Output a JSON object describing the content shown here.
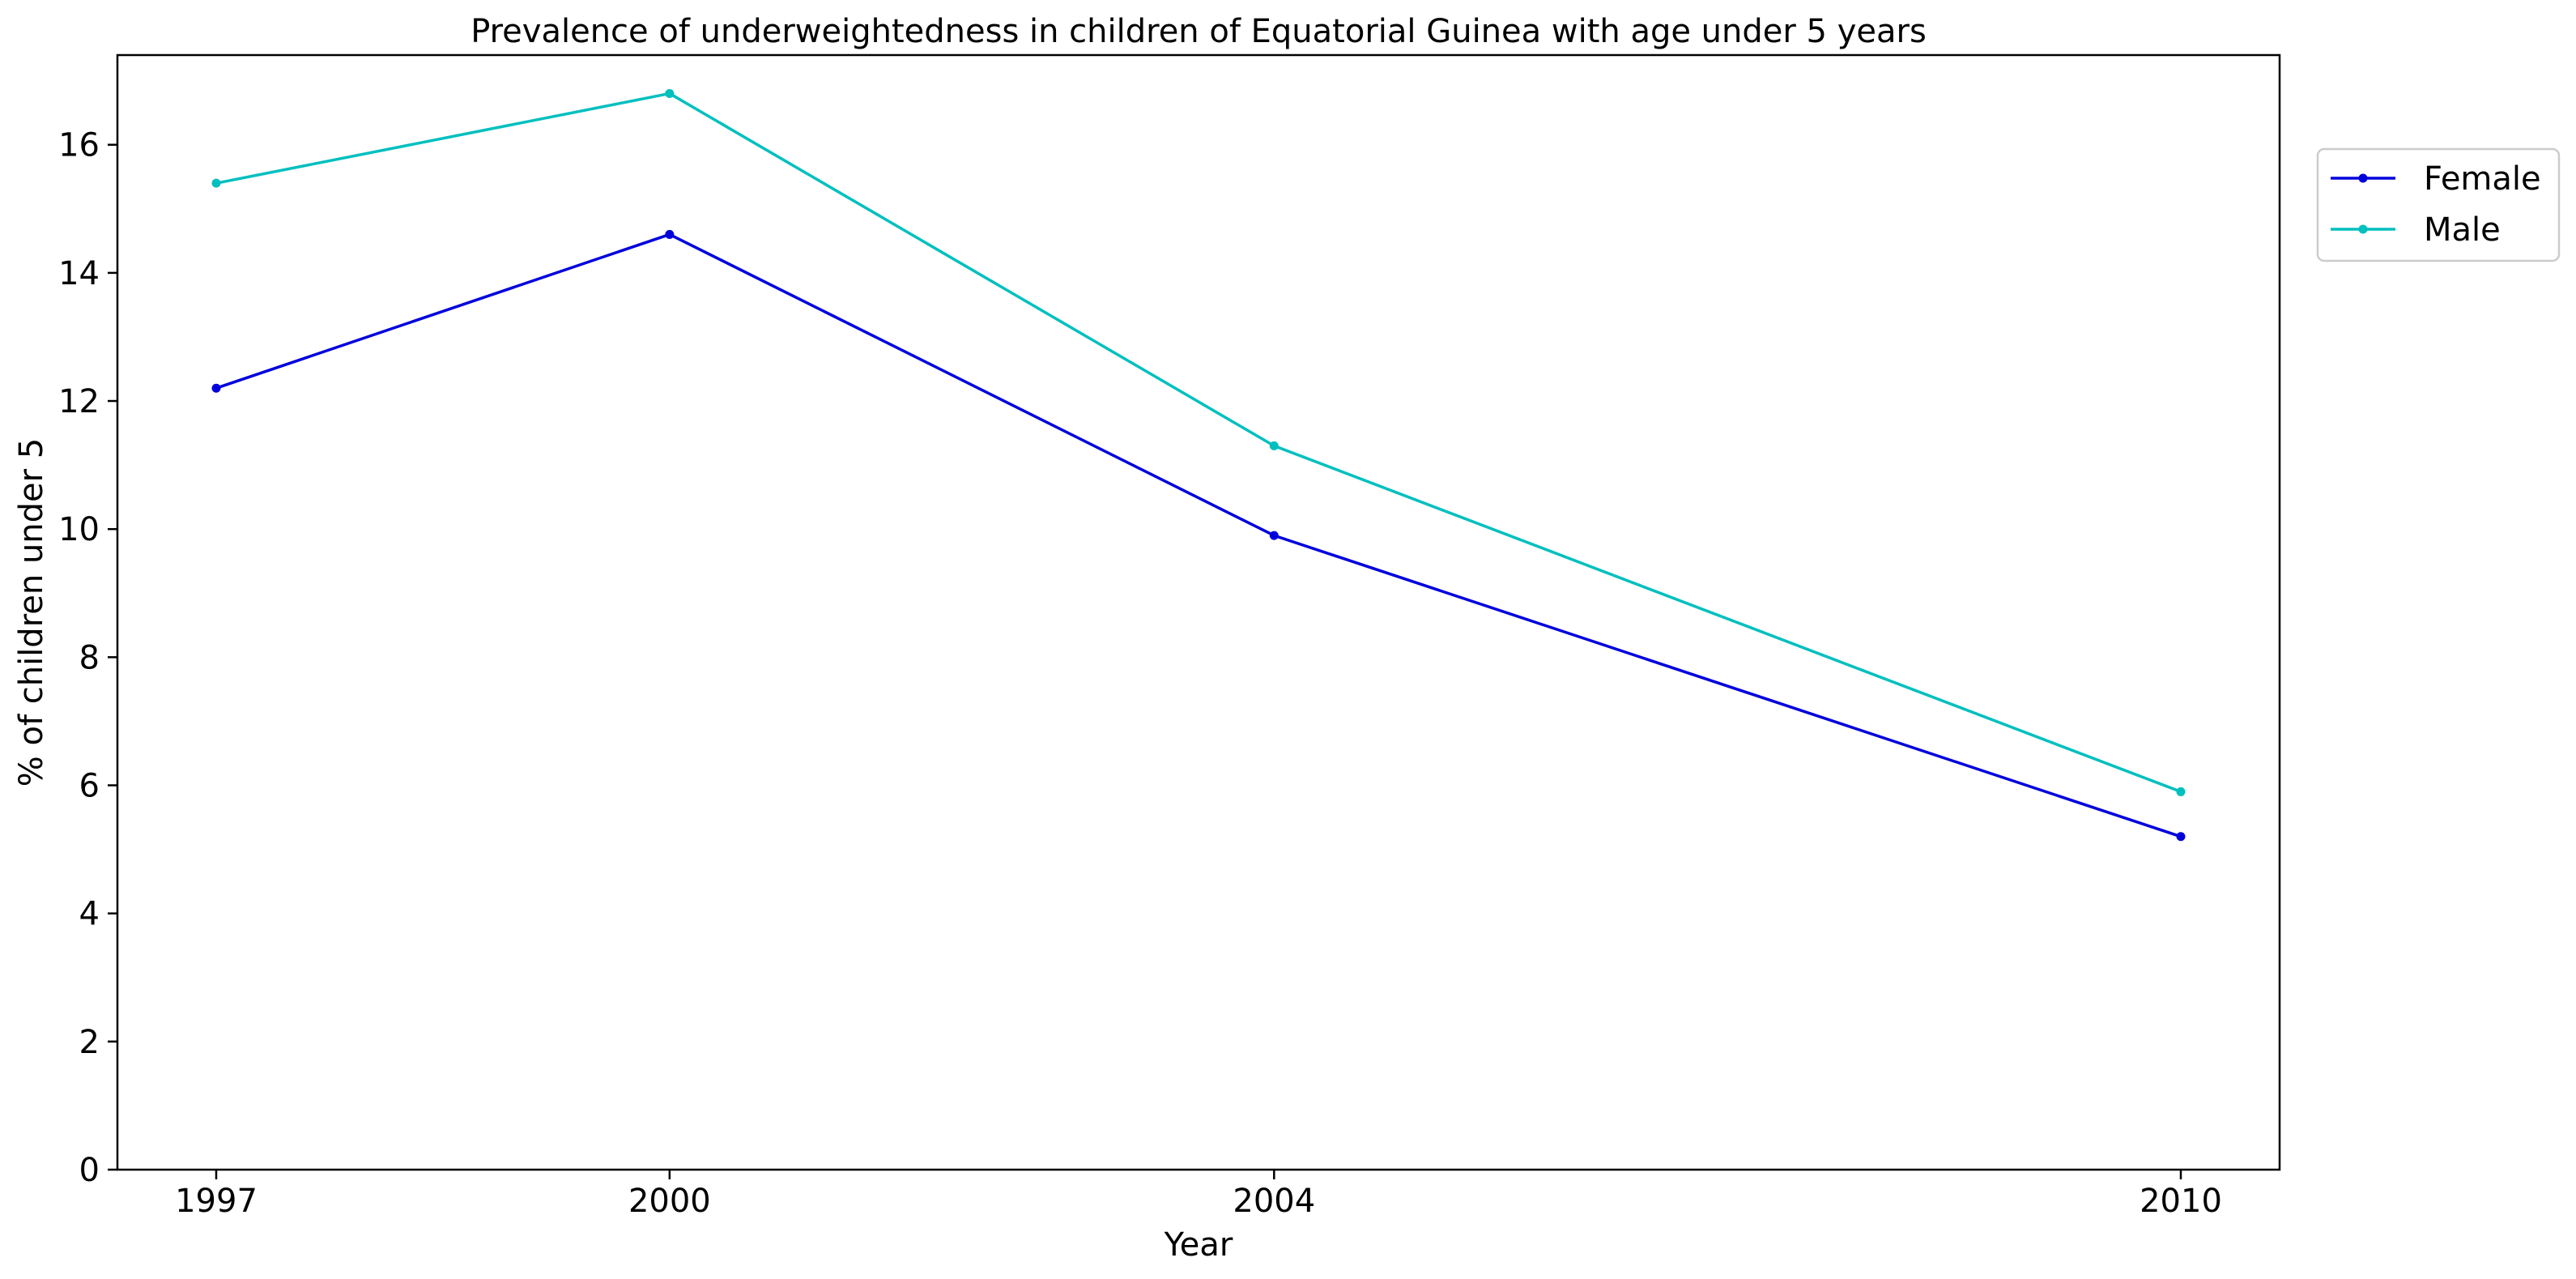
{
  "chart_data": {
    "type": "line",
    "title": "Prevalence of underweightedness in children of Equatorial Guinea with age under 5 years",
    "xlabel": "Year",
    "ylabel": "% of children under 5",
    "categories": [
      "1997",
      "2000",
      "2004",
      "2010"
    ],
    "ylim": [
      0,
      17.4
    ],
    "yticks": [
      0,
      2,
      4,
      6,
      8,
      10,
      12,
      14,
      16
    ],
    "grid": false,
    "legend_position": "top-right outside",
    "series": [
      {
        "name": "Female",
        "color": "#0000dd",
        "values": [
          12.2,
          14.6,
          9.9,
          5.2
        ]
      },
      {
        "name": "Male",
        "color": "#00bfbf",
        "values": [
          15.4,
          16.8,
          11.3,
          5.9
        ]
      }
    ]
  }
}
